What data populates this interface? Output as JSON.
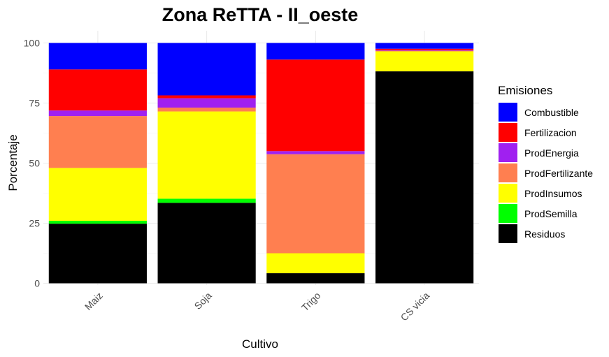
{
  "chart_data": {
    "type": "bar",
    "stacked": true,
    "title": "Zona ReTTA - II_oeste",
    "xlabel": "Cultivo",
    "ylabel": "Porcentaje",
    "ylim": [
      0,
      100
    ],
    "yticks": [
      0,
      25,
      50,
      75,
      100
    ],
    "grid": true,
    "legend_position": "right",
    "legend_title": "Emisiones",
    "categories": [
      "Maiz",
      "Soja",
      "Trigo",
      "CS vicia"
    ],
    "series": [
      {
        "name": "Residuos",
        "color": "#000000",
        "values": [
          24.8,
          33.5,
          4.2,
          88.2
        ]
      },
      {
        "name": "ProdSemilla",
        "color": "#00ff00",
        "values": [
          1.2,
          1.7,
          0.0,
          0.0
        ]
      },
      {
        "name": "ProdInsumos",
        "color": "#ffff00",
        "values": [
          22.0,
          36.3,
          8.3,
          8.3
        ]
      },
      {
        "name": "ProdFertilizante",
        "color": "#ff7f50",
        "values": [
          21.6,
          1.6,
          41.2,
          0.3
        ]
      },
      {
        "name": "ProdEnergia",
        "color": "#a020f0",
        "values": [
          2.3,
          3.9,
          1.3,
          0.3
        ]
      },
      {
        "name": "Fertilizacion",
        "color": "#ff0000",
        "values": [
          17.1,
          1.2,
          38.1,
          0.5
        ]
      },
      {
        "name": "Combustible",
        "color": "#0000ff",
        "values": [
          11.0,
          21.8,
          6.9,
          2.4
        ]
      }
    ],
    "legend_order": [
      "Combustible",
      "Fertilizacion",
      "ProdEnergia",
      "ProdFertilizante",
      "ProdInsumos",
      "ProdSemilla",
      "Residuos"
    ]
  }
}
